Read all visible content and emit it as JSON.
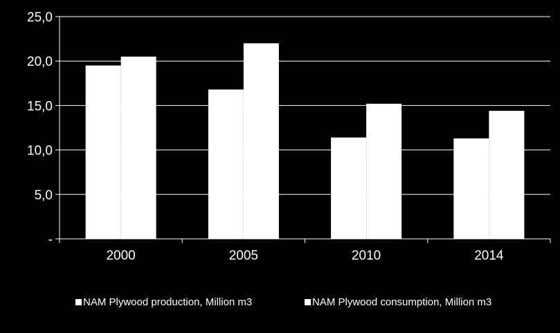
{
  "chart_data": {
    "type": "bar",
    "categories": [
      "2000",
      "2005",
      "2010",
      "2014"
    ],
    "series": [
      {
        "name": "NAM Plywood production, Million m3",
        "values": [
          19.5,
          16.8,
          11.4,
          11.3
        ]
      },
      {
        "name": "NAM Plywood consumption, Million m3",
        "values": [
          20.5,
          22.0,
          15.2,
          14.4
        ]
      }
    ],
    "yticks": [
      {
        "value": 0,
        "label": "-"
      },
      {
        "value": 5,
        "label": "5,0"
      },
      {
        "value": 10,
        "label": "10,0"
      },
      {
        "value": 15,
        "label": "15,0"
      },
      {
        "value": 20,
        "label": "20,0"
      },
      {
        "value": 25,
        "label": "25,0"
      }
    ],
    "ylim": [
      0,
      25
    ],
    "grid": true,
    "legend": "bottom",
    "colors": {
      "background": "#000000",
      "bars": "#ffffff",
      "gridlines": "#ffffff",
      "text": "#ffffff"
    }
  }
}
